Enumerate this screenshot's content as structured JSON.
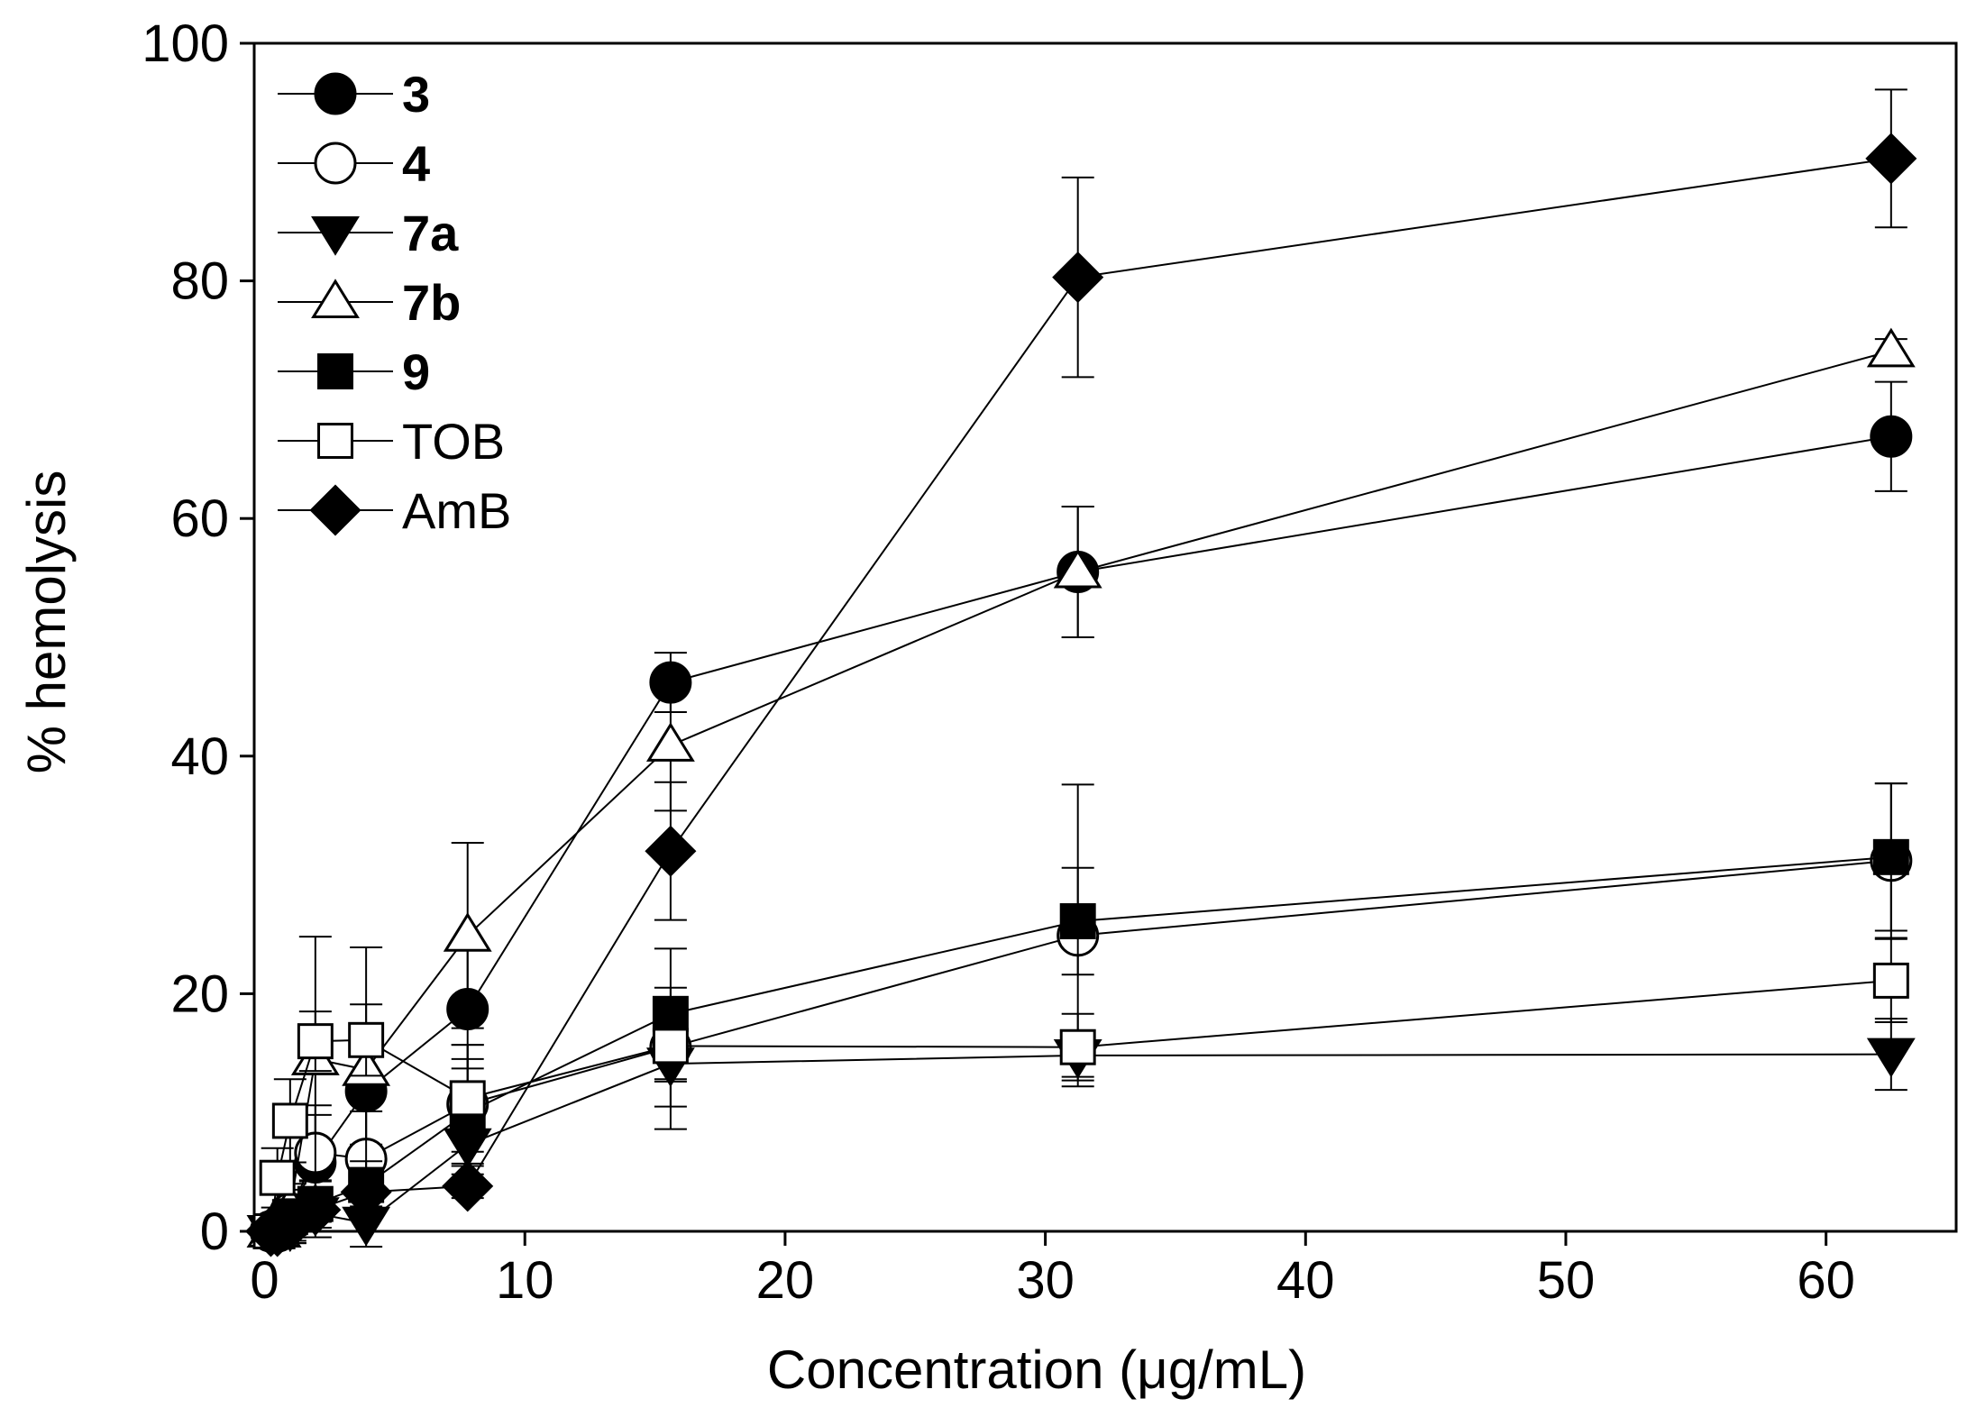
{
  "chart_data": {
    "type": "line",
    "title": "",
    "xlabel": "Concentration (μg/mL)",
    "ylabel": "% hemolysis",
    "xlim": [
      -0.4,
      65
    ],
    "ylim": [
      0,
      100
    ],
    "xticks": [
      0,
      10,
      20,
      30,
      40,
      50,
      60
    ],
    "yticks": [
      0,
      20,
      40,
      60,
      80,
      100
    ],
    "grid": false,
    "legend_position": "top-left",
    "x": [
      0.24,
      0.49,
      0.98,
      1.95,
      3.9,
      7.8,
      15.6,
      31.25,
      62.5
    ],
    "series": [
      {
        "name": "3",
        "bold": true,
        "marker": "circle",
        "filled": true,
        "values": [
          0,
          0,
          1.5,
          5.8,
          11.8,
          18.7,
          46.2,
          55.5,
          66.9
        ],
        "errors": [
          0,
          0,
          2.5,
          4,
          4.5,
          5,
          2.5,
          5.5,
          4.6
        ]
      },
      {
        "name": "4",
        "bold": true,
        "marker": "circle",
        "filled": false,
        "values": [
          0,
          0,
          1.5,
          6.6,
          6.1,
          10.7,
          15.5,
          24.9,
          31.2
        ],
        "errors": [
          0,
          0,
          2,
          4,
          4,
          5,
          5,
          12.7,
          6.5
        ]
      },
      {
        "name": "7a",
        "bold": true,
        "marker": "triangle-down",
        "filled": true,
        "values": [
          0,
          0,
          0.2,
          1.5,
          0.7,
          7.3,
          14.1,
          14.8,
          14.9
        ],
        "errors": [
          0,
          0,
          1,
          2,
          2,
          3,
          5.5,
          1.8,
          3
        ]
      },
      {
        "name": "7b",
        "bold": true,
        "marker": "triangle-up",
        "filled": false,
        "values": [
          0,
          0,
          2,
          14.5,
          13.6,
          24.9,
          40.9,
          55.5,
          74.1
        ],
        "errors": [
          0,
          0,
          3,
          10.3,
          10.3,
          7.8,
          5.5,
          5.5,
          1
        ]
      },
      {
        "name": "9",
        "bold": true,
        "marker": "square",
        "filled": true,
        "values": [
          0,
          0,
          1.2,
          2.3,
          3.9,
          10.0,
          18.3,
          26.1,
          31.5
        ],
        "errors": [
          0,
          0,
          1.5,
          2,
          2,
          4.5,
          5.5,
          4.5,
          6.2
        ]
      },
      {
        "name": "TOB",
        "bold": false,
        "marker": "square",
        "filled": false,
        "values": [
          0,
          4.5,
          9.3,
          16.0,
          16.1,
          11.2,
          15.6,
          15.5,
          21.1
        ],
        "errors": [
          0,
          2.5,
          3.5,
          2.5,
          3,
          4.5,
          3,
          2.8,
          3.5
        ]
      },
      {
        "name": "AmB",
        "bold": false,
        "marker": "diamond",
        "filled": true,
        "values": [
          0,
          0,
          0.5,
          1.8,
          3.3,
          3.8,
          32.0,
          80.3,
          90.3
        ],
        "errors": [
          0,
          0,
          1,
          1,
          1.5,
          1,
          5.8,
          8.4,
          5.8
        ]
      }
    ]
  }
}
